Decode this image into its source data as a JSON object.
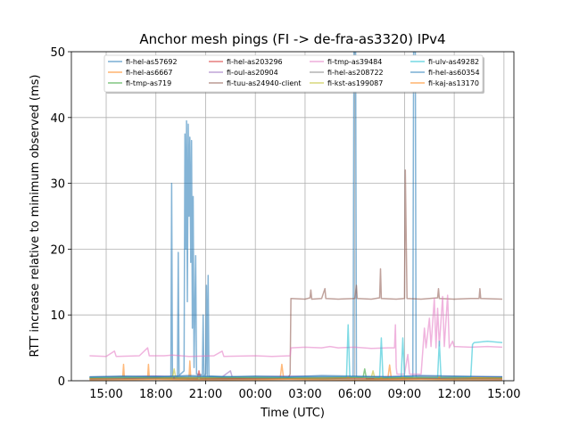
{
  "chart_data": {
    "type": "line",
    "title": "Anchor mesh pings (FI -> de-fra-as3320) IPv4",
    "xlabel": "Time (UTC)",
    "ylabel": "RTT increase relative to minimum observed (ms)",
    "ylim": [
      0,
      50
    ],
    "xlim_hours": [
      12.9,
      39.6
    ],
    "yticks": [
      0,
      10,
      20,
      30,
      40,
      50
    ],
    "xticks": [
      {
        "hour": 15,
        "label": "15:00"
      },
      {
        "hour": 18,
        "label": "18:00"
      },
      {
        "hour": 21,
        "label": "21:00"
      },
      {
        "hour": 24,
        "label": "00:00"
      },
      {
        "hour": 27,
        "label": "03:00"
      },
      {
        "hour": 30,
        "label": "06:00"
      },
      {
        "hour": 33,
        "label": "09:00"
      },
      {
        "hour": 36,
        "label": "12:00"
      },
      {
        "hour": 39,
        "label": "15:00"
      }
    ],
    "grid": true,
    "legend_position": "top",
    "series": [
      {
        "name": "fi-hel-as57692",
        "color": "#1f77b4",
        "points": [
          [
            14.0,
            0.5
          ],
          [
            18.0,
            0.7
          ],
          [
            18.9,
            0.6
          ],
          [
            18.95,
            30
          ],
          [
            19.0,
            0.5
          ],
          [
            19.3,
            0.6
          ],
          [
            19.35,
            19.5
          ],
          [
            19.4,
            0.8
          ],
          [
            19.7,
            1.5
          ],
          [
            19.75,
            37.5
          ],
          [
            19.8,
            20
          ],
          [
            19.85,
            39.5
          ],
          [
            19.9,
            12
          ],
          [
            19.95,
            39
          ],
          [
            20.0,
            25
          ],
          [
            20.05,
            37
          ],
          [
            20.1,
            18
          ],
          [
            20.15,
            36.5
          ],
          [
            20.2,
            8
          ],
          [
            20.25,
            28
          ],
          [
            20.3,
            2
          ],
          [
            20.4,
            19
          ],
          [
            20.45,
            1
          ],
          [
            20.8,
            0.9
          ],
          [
            20.85,
            10
          ],
          [
            20.9,
            0.8
          ],
          [
            21.0,
            1
          ],
          [
            21.05,
            14.5
          ],
          [
            21.1,
            0.8
          ],
          [
            21.15,
            16
          ],
          [
            21.2,
            0.7
          ],
          [
            24.0,
            0.5
          ],
          [
            29.9,
            0.6
          ],
          [
            29.95,
            50
          ],
          [
            30.05,
            50
          ],
          [
            30.1,
            0.6
          ],
          [
            33.5,
            0.5
          ],
          [
            33.55,
            50
          ],
          [
            33.65,
            50
          ],
          [
            33.7,
            0.5
          ],
          [
            38.9,
            0.6
          ]
        ]
      },
      {
        "name": "fi-hel-as6667",
        "color": "#ff7f0e",
        "points": [
          [
            14.0,
            0.4
          ],
          [
            16.0,
            0.6
          ],
          [
            16.05,
            2.5
          ],
          [
            16.1,
            0.4
          ],
          [
            17.5,
            0.5
          ],
          [
            17.55,
            2.5
          ],
          [
            17.6,
            0.5
          ],
          [
            20.0,
            0.5
          ],
          [
            20.05,
            3
          ],
          [
            20.1,
            0.5
          ],
          [
            23.0,
            0.4
          ],
          [
            25.5,
            0.4
          ],
          [
            25.6,
            2.5
          ],
          [
            25.7,
            0.4
          ],
          [
            29.0,
            0.5
          ],
          [
            32.0,
            0.4
          ],
          [
            32.1,
            2.4
          ],
          [
            32.2,
            0.4
          ],
          [
            35.0,
            0.5
          ],
          [
            38.9,
            0.4
          ]
        ]
      },
      {
        "name": "fi-tmp-as719",
        "color": "#2ca02c",
        "points": [
          [
            14.0,
            0.3
          ],
          [
            17.0,
            0.4
          ],
          [
            20.0,
            0.3
          ],
          [
            24.0,
            0.4
          ],
          [
            28.0,
            0.3
          ],
          [
            30.5,
            0.5
          ],
          [
            30.6,
            1.8
          ],
          [
            30.7,
            0.3
          ],
          [
            33.0,
            0.4
          ],
          [
            36.0,
            0.3
          ],
          [
            38.9,
            0.4
          ]
        ]
      },
      {
        "name": "fi-hel-as203296",
        "color": "#d62728",
        "points": [
          [
            14.0,
            0.3
          ],
          [
            18.0,
            0.4
          ],
          [
            20.5,
            0.3
          ],
          [
            20.6,
            1.5
          ],
          [
            20.7,
            0.3
          ],
          [
            24.0,
            0.3
          ],
          [
            28.0,
            0.4
          ],
          [
            32.0,
            0.3
          ],
          [
            36.0,
            0.4
          ],
          [
            38.9,
            0.3
          ]
        ]
      },
      {
        "name": "fi-oul-as20904",
        "color": "#9467bd",
        "points": [
          [
            14.0,
            0.6
          ],
          [
            18.0,
            0.7
          ],
          [
            22.0,
            0.6
          ],
          [
            22.5,
            1.5
          ],
          [
            22.6,
            0.6
          ],
          [
            26.0,
            0.7
          ],
          [
            30.0,
            0.6
          ],
          [
            34.0,
            0.7
          ],
          [
            38.9,
            0.6
          ]
        ]
      },
      {
        "name": "fi-tuu-as24940-client",
        "color": "#8c564b",
        "points": [
          [
            14.0,
            0.5
          ],
          [
            26.0,
            0.5
          ],
          [
            26.1,
            1.0
          ],
          [
            26.15,
            12.5
          ],
          [
            27.0,
            12.4
          ],
          [
            27.3,
            12.6
          ],
          [
            27.35,
            13.8
          ],
          [
            27.4,
            12.4
          ],
          [
            28.0,
            12.5
          ],
          [
            28.2,
            14
          ],
          [
            28.25,
            12.5
          ],
          [
            29.0,
            12.4
          ],
          [
            30.0,
            12.5
          ],
          [
            30.1,
            14.5
          ],
          [
            30.15,
            12.5
          ],
          [
            31.0,
            12.4
          ],
          [
            31.5,
            12.6
          ],
          [
            31.55,
            17
          ],
          [
            31.6,
            12.5
          ],
          [
            32.5,
            12.4
          ],
          [
            33.0,
            12.5
          ],
          [
            33.05,
            32
          ],
          [
            33.15,
            12.5
          ],
          [
            34.0,
            12.4
          ],
          [
            35.0,
            12.6
          ],
          [
            35.05,
            14
          ],
          [
            35.1,
            12.5
          ],
          [
            36.0,
            12.4
          ],
          [
            37.0,
            12.5
          ],
          [
            37.5,
            12.5
          ],
          [
            37.55,
            14
          ],
          [
            37.6,
            12.5
          ],
          [
            38.9,
            12.4
          ]
        ]
      },
      {
        "name": "fi-tmp-as39484",
        "color": "#e377c2",
        "points": [
          [
            14.0,
            3.8
          ],
          [
            15.0,
            3.7
          ],
          [
            15.5,
            4.5
          ],
          [
            15.6,
            3.7
          ],
          [
            17.0,
            3.8
          ],
          [
            17.5,
            5
          ],
          [
            17.6,
            3.8
          ],
          [
            18.5,
            3.8
          ],
          [
            19.0,
            3.9
          ],
          [
            20.0,
            3.7
          ],
          [
            21.5,
            3.8
          ],
          [
            22.0,
            4.5
          ],
          [
            22.1,
            3.7
          ],
          [
            24.0,
            3.8
          ],
          [
            25.0,
            3.7
          ],
          [
            26.1,
            3.8
          ],
          [
            26.15,
            5.0
          ],
          [
            27.0,
            5.1
          ],
          [
            28.0,
            5.0
          ],
          [
            28.5,
            5.2
          ],
          [
            29.0,
            5.0
          ],
          [
            30.0,
            5.1
          ],
          [
            31.0,
            4.9
          ],
          [
            32.0,
            5.0
          ],
          [
            32.4,
            5.0
          ],
          [
            32.45,
            8.5
          ],
          [
            32.5,
            2
          ],
          [
            32.55,
            1
          ],
          [
            33.0,
            1
          ],
          [
            33.2,
            4
          ],
          [
            33.3,
            1
          ],
          [
            34.0,
            1
          ],
          [
            34.2,
            8
          ],
          [
            34.3,
            5
          ],
          [
            34.5,
            9.5
          ],
          [
            34.6,
            5.2
          ],
          [
            34.8,
            12.5
          ],
          [
            34.9,
            5
          ],
          [
            35.0,
            11
          ],
          [
            35.1,
            5.3
          ],
          [
            35.3,
            12.8
          ],
          [
            35.4,
            5.2
          ],
          [
            35.6,
            13
          ],
          [
            35.7,
            5
          ],
          [
            35.9,
            6
          ],
          [
            36.0,
            5.2
          ],
          [
            37.0,
            5.1
          ],
          [
            38.0,
            5.2
          ],
          [
            38.9,
            5.1
          ]
        ]
      },
      {
        "name": "fi-hel-as208722",
        "color": "#7f7f7f",
        "points": [
          [
            14.0,
            0.2
          ],
          [
            18.0,
            0.3
          ],
          [
            22.0,
            0.2
          ],
          [
            26.0,
            0.3
          ],
          [
            30.0,
            0.2
          ],
          [
            34.0,
            0.3
          ],
          [
            38.9,
            0.2
          ]
        ]
      },
      {
        "name": "fi-kst-as199087",
        "color": "#bcbd22",
        "points": [
          [
            14.0,
            0.4
          ],
          [
            17.0,
            0.5
          ],
          [
            19.0,
            0.4
          ],
          [
            19.1,
            1.8
          ],
          [
            19.2,
            0.4
          ],
          [
            23.0,
            0.5
          ],
          [
            27.0,
            0.4
          ],
          [
            31.0,
            0.5
          ],
          [
            31.1,
            1.5
          ],
          [
            31.2,
            0.4
          ],
          [
            35.0,
            0.5
          ],
          [
            38.9,
            0.4
          ]
        ]
      },
      {
        "name": "fi-ulv-as49282",
        "color": "#17becf",
        "points": [
          [
            14.0,
            0.5
          ],
          [
            20.0,
            0.6
          ],
          [
            26.0,
            0.5
          ],
          [
            29.5,
            0.6
          ],
          [
            29.6,
            8.5
          ],
          [
            29.7,
            0.6
          ],
          [
            31.5,
            0.5
          ],
          [
            31.6,
            6.5
          ],
          [
            31.7,
            0.5
          ],
          [
            32.8,
            0.6
          ],
          [
            32.9,
            6.5
          ],
          [
            33.0,
            0.6
          ],
          [
            35.0,
            0.5
          ],
          [
            35.1,
            6
          ],
          [
            35.2,
            0.5
          ],
          [
            37.0,
            0.6
          ],
          [
            37.1,
            5.5
          ],
          [
            37.2,
            5.8
          ],
          [
            38.0,
            6.0
          ],
          [
            38.9,
            5.8
          ]
        ]
      },
      {
        "name": "fi-hel-as60354",
        "color": "#1f77b4",
        "points": [
          [
            14.0,
            0.6
          ],
          [
            16.0,
            0.7
          ],
          [
            18.0,
            0.6
          ],
          [
            20.0,
            0.8
          ],
          [
            22.0,
            0.6
          ],
          [
            24.0,
            0.7
          ],
          [
            26.0,
            0.6
          ],
          [
            28.0,
            0.8
          ],
          [
            30.0,
            0.7
          ],
          [
            32.0,
            0.6
          ],
          [
            34.0,
            0.8
          ],
          [
            36.0,
            0.7
          ],
          [
            38.9,
            0.6
          ]
        ]
      },
      {
        "name": "fi-kaj-as13170",
        "color": "#ff7f0e",
        "points": [
          [
            14.0,
            0.1
          ],
          [
            18.0,
            0.2
          ],
          [
            22.0,
            0.1
          ],
          [
            26.0,
            0.2
          ],
          [
            30.0,
            0.1
          ],
          [
            34.0,
            0.2
          ],
          [
            38.9,
            0.1
          ]
        ]
      }
    ]
  }
}
